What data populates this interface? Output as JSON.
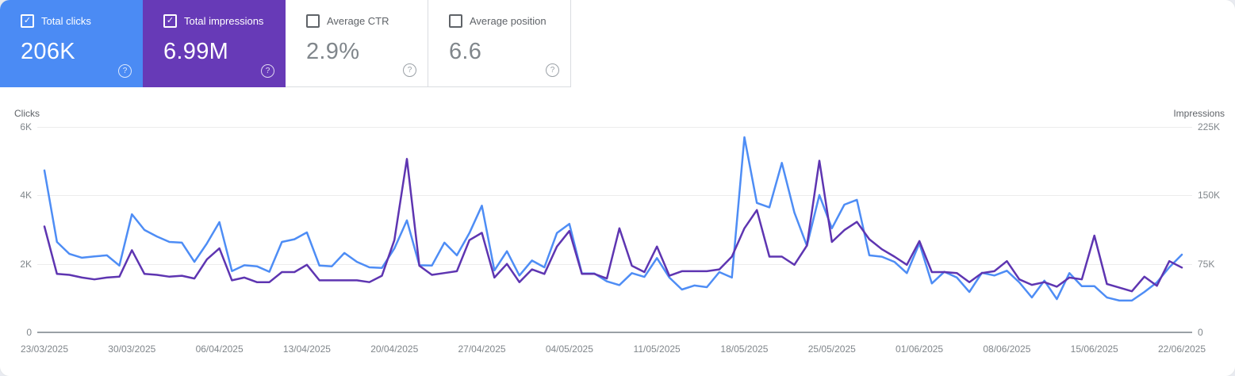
{
  "icons": {
    "check": "✓",
    "help": "?"
  },
  "colors": {
    "clicks_card_bg": "#4b8bf4",
    "impressions_card_bg": "#673ab7",
    "clicks_line": "#4e8df5",
    "impressions_line": "#5e35b1"
  },
  "cards": [
    {
      "label": "Total clicks",
      "value": "206K",
      "checked": true
    },
    {
      "label": "Total impressions",
      "value": "6.99M",
      "checked": true
    },
    {
      "label": "Average CTR",
      "value": "2.9%",
      "checked": false
    },
    {
      "label": "Average position",
      "value": "6.6",
      "checked": false
    }
  ],
  "chart_data": {
    "type": "line",
    "x_start": "23/03/2025",
    "x_end": "22/06/2025",
    "frequency": "daily",
    "x_ticks": [
      "23/03/2025",
      "30/03/2025",
      "06/04/2025",
      "13/04/2025",
      "20/04/2025",
      "27/04/2025",
      "04/05/2025",
      "11/05/2025",
      "18/05/2025",
      "25/05/2025",
      "01/06/2025",
      "08/06/2025",
      "15/06/2025",
      "22/06/2025"
    ],
    "left_axis": {
      "label": "Clicks",
      "ticks": [
        "6K",
        "4K",
        "2K",
        "0"
      ],
      "max": 6000
    },
    "right_axis": {
      "label": "Impressions",
      "ticks": [
        "225K",
        "150K",
        "75K",
        "0"
      ],
      "max": 225000
    },
    "grid": true,
    "legend_position": "none",
    "series": [
      {
        "name": "Clicks",
        "axis": "left",
        "color": "#4e8df5",
        "values": [
          4730,
          2640,
          2290,
          2180,
          2220,
          2250,
          1950,
          3450,
          2990,
          2800,
          2640,
          2620,
          2060,
          2600,
          3220,
          1790,
          1960,
          1930,
          1770,
          2640,
          2720,
          2920,
          1950,
          1930,
          2320,
          2060,
          1900,
          1880,
          2450,
          3270,
          1960,
          1950,
          2620,
          2250,
          2900,
          3700,
          1810,
          2370,
          1660,
          2100,
          1900,
          2900,
          3170,
          1720,
          1720,
          1490,
          1380,
          1730,
          1620,
          2170,
          1600,
          1250,
          1370,
          1320,
          1760,
          1600,
          5700,
          3780,
          3650,
          4950,
          3500,
          2530,
          4010,
          3040,
          3730,
          3870,
          2250,
          2210,
          2060,
          1730,
          2600,
          1430,
          1770,
          1600,
          1180,
          1740,
          1660,
          1800,
          1460,
          1020,
          1510,
          970,
          1730,
          1350,
          1350,
          1020,
          930,
          930,
          1180,
          1460,
          1900,
          2270
        ]
      },
      {
        "name": "Impressions",
        "axis": "right",
        "color": "#5e35b1",
        "values": [
          116000,
          64000,
          63000,
          60000,
          58000,
          60000,
          61000,
          90000,
          64000,
          63000,
          61000,
          62000,
          59000,
          80000,
          92000,
          57000,
          60000,
          55000,
          55000,
          66000,
          66000,
          74000,
          57000,
          57000,
          57000,
          57000,
          55000,
          62000,
          101000,
          190000,
          73000,
          63000,
          65000,
          67000,
          101000,
          109000,
          60000,
          75000,
          55000,
          69000,
          64000,
          94000,
          111000,
          64000,
          64000,
          59000,
          114000,
          73000,
          66000,
          94000,
          62000,
          67000,
          67000,
          67000,
          69000,
          83000,
          114000,
          134000,
          83000,
          83000,
          74000,
          95000,
          188000,
          99000,
          112000,
          121000,
          102000,
          91000,
          83000,
          74000,
          100000,
          66000,
          66000,
          65000,
          55000,
          65000,
          67000,
          78000,
          58000,
          52000,
          55000,
          50000,
          60000,
          58000,
          106000,
          53000,
          49000,
          45000,
          61000,
          51000,
          78000,
          71000
        ]
      }
    ]
  }
}
